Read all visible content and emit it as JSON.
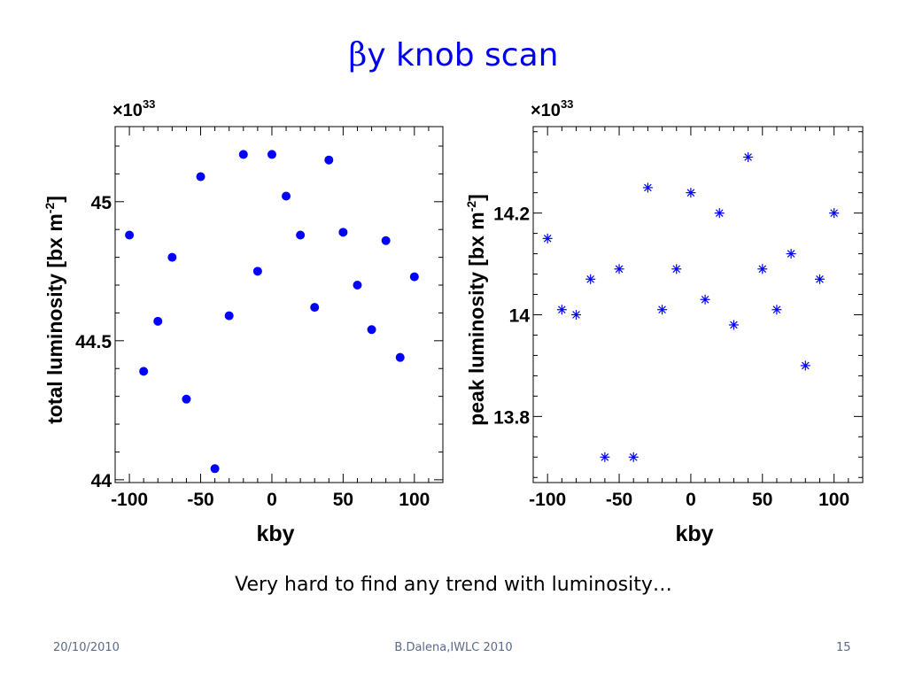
{
  "slide": {
    "title_symbol": "β",
    "title_text": "y knob scan",
    "caption": "Very hard to find any trend with luminosity…",
    "footer_left": "20/10/2010",
    "footer_center": "B.Dalena,IWLC 2010",
    "footer_right": "15"
  },
  "chart_data": [
    {
      "type": "scatter",
      "marker": "filled-circle",
      "color": "#0000ff",
      "xlabel": "kby",
      "ylabel": "total luminosity [bx m",
      "ylabel_sup": "-2",
      "ylabel_close": "]",
      "exponent_prefix": "×10",
      "exponent": "33",
      "xlim": [
        -110,
        120
      ],
      "ylim": [
        43.99,
        45.27
      ],
      "xticks": [
        -100,
        -50,
        0,
        50,
        100
      ],
      "xtick_labels": [
        "-100",
        "-50",
        "0",
        "50",
        "100"
      ],
      "yticks": [
        44,
        44.5,
        45
      ],
      "ytick_labels": [
        "44",
        "44.5",
        "45"
      ],
      "x": [
        -100,
        -90,
        -80,
        -70,
        -60,
        -50,
        -40,
        -30,
        -20,
        -10,
        0,
        10,
        20,
        30,
        40,
        50,
        60,
        70,
        80,
        90,
        100
      ],
      "y": [
        44.88,
        44.39,
        44.57,
        44.8,
        44.29,
        45.09,
        44.04,
        44.59,
        45.17,
        44.75,
        45.17,
        45.02,
        44.88,
        44.62,
        45.15,
        44.89,
        44.7,
        44.54,
        44.86,
        44.44,
        44.73
      ]
    },
    {
      "type": "scatter",
      "marker": "asterisk",
      "color": "#0000ff",
      "xlabel": "kby",
      "ylabel": "peak luminosity [bx m",
      "ylabel_sup": "-2",
      "ylabel_close": "]",
      "exponent_prefix": "×10",
      "exponent": "33",
      "xlim": [
        -110,
        120
      ],
      "ylim": [
        13.67,
        14.37
      ],
      "xticks": [
        -100,
        -50,
        0,
        50,
        100
      ],
      "xtick_labels": [
        "-100",
        "-50",
        "0",
        "50",
        "100"
      ],
      "yticks": [
        13.8,
        14,
        14.2
      ],
      "ytick_labels": [
        "13.8",
        "14",
        "14.2"
      ],
      "x": [
        -100,
        -90,
        -80,
        -70,
        -60,
        -50,
        -40,
        -30,
        -20,
        -10,
        0,
        10,
        20,
        30,
        40,
        50,
        60,
        70,
        80,
        90,
        100
      ],
      "y": [
        14.15,
        14.01,
        14.0,
        14.07,
        13.72,
        14.09,
        13.72,
        14.25,
        14.01,
        14.09,
        14.24,
        14.03,
        14.2,
        13.98,
        14.31,
        14.09,
        14.01,
        14.12,
        13.9,
        14.07,
        14.2
      ]
    }
  ]
}
